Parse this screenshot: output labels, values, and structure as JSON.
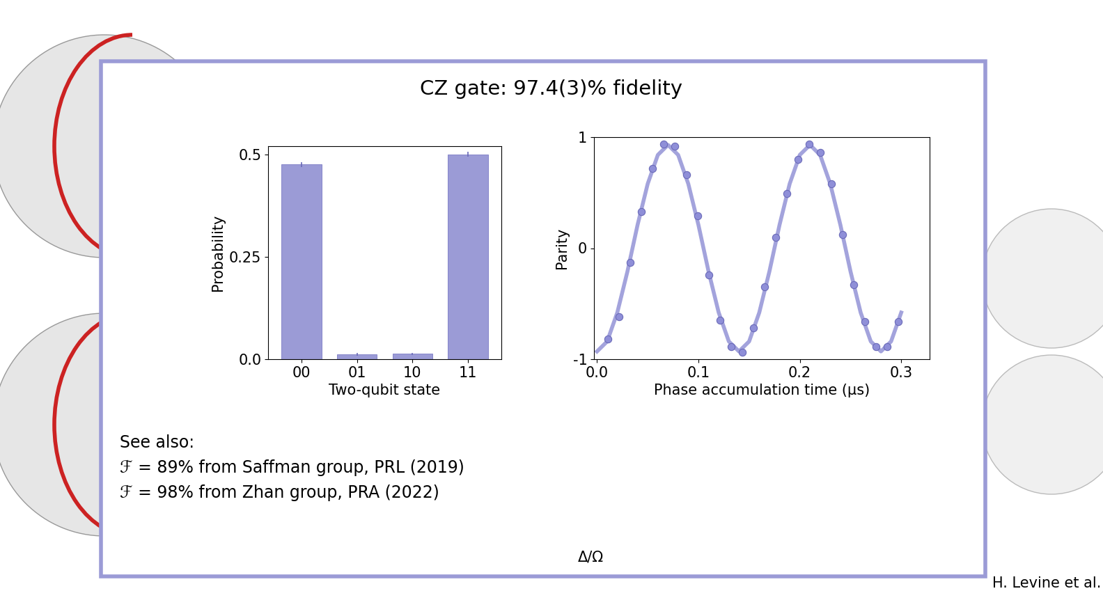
{
  "slide": {
    "heading": "CZ gate: 97.4(3)% fidelity",
    "notes": [
      "See also:",
      "ℱ = 89% from Saffman group, PRL (2019)",
      "ℱ = 98% from Zhan group, PRA (2022)"
    ],
    "fragments": [
      "Δ/Ω",
      "H. Levine et al."
    ]
  },
  "chart_data": [
    {
      "type": "bar",
      "categories": [
        "00",
        "01",
        "10",
        "11"
      ],
      "values": [
        0.475,
        0.012,
        0.013,
        0.5
      ],
      "errors": [
        0.006,
        0.003,
        0.003,
        0.006
      ],
      "color": "#9b9bd6",
      "xlabel": "Two-qubit state",
      "ylabel": "Probability",
      "ylim": [
        0,
        0.52
      ],
      "yticks": [
        {
          "value": 0,
          "label": "0.0"
        },
        0.25,
        0.5
      ]
    },
    {
      "type": "scatter",
      "xlabel": "Phase accumulation time (μs)",
      "ylabel": "Parity",
      "xlim": [
        -0.003,
        0.328
      ],
      "ylim": [
        -1,
        1
      ],
      "xticks": [
        {
          "value": 0,
          "label": "0.0"
        },
        0.1,
        0.2,
        0.3
      ],
      "yticks": [
        -1,
        0,
        1
      ],
      "series": [
        {
          "type": "scatter",
          "color": "#8f8fd8",
          "marker": "o",
          "x": [
            0.011,
            0.022,
            0.033,
            0.044,
            0.055,
            0.066,
            0.077,
            0.088,
            0.099,
            0.11,
            0.121,
            0.132,
            0.143,
            0.154,
            0.165,
            0.176,
            0.187,
            0.198,
            0.209,
            0.22,
            0.231,
            0.242,
            0.253,
            0.264,
            0.275,
            0.286,
            0.297
          ],
          "values": [
            -0.82,
            -0.62,
            -0.13,
            0.33,
            0.72,
            0.94,
            0.92,
            0.66,
            0.29,
            -0.24,
            -0.65,
            -0.89,
            -0.94,
            -0.72,
            -0.35,
            0.1,
            0.49,
            0.8,
            0.94,
            0.86,
            0.58,
            0.12,
            -0.33,
            -0.66,
            -0.89,
            -0.89,
            -0.66
          ]
        },
        {
          "type": "line",
          "color": "#a3a3dc",
          "line_style": "solid",
          "x": [
            0.0,
            0.01,
            0.02,
            0.03,
            0.04,
            0.05,
            0.06,
            0.07,
            0.08,
            0.09,
            0.1,
            0.11,
            0.12,
            0.13,
            0.14,
            0.15,
            0.16,
            0.17,
            0.18,
            0.19,
            0.2,
            0.21,
            0.22,
            0.23,
            0.24,
            0.25,
            0.26,
            0.27,
            0.28,
            0.29,
            0.3
          ],
          "values": [
            -0.93,
            -0.84,
            -0.58,
            -0.21,
            0.21,
            0.58,
            0.84,
            0.93,
            0.84,
            0.58,
            0.21,
            -0.21,
            -0.58,
            -0.84,
            -0.93,
            -0.84,
            -0.58,
            -0.21,
            0.21,
            0.58,
            0.84,
            0.93,
            0.84,
            0.58,
            0.21,
            -0.21,
            -0.58,
            -0.84,
            -0.93,
            -0.84,
            -0.58
          ]
        }
      ]
    }
  ]
}
